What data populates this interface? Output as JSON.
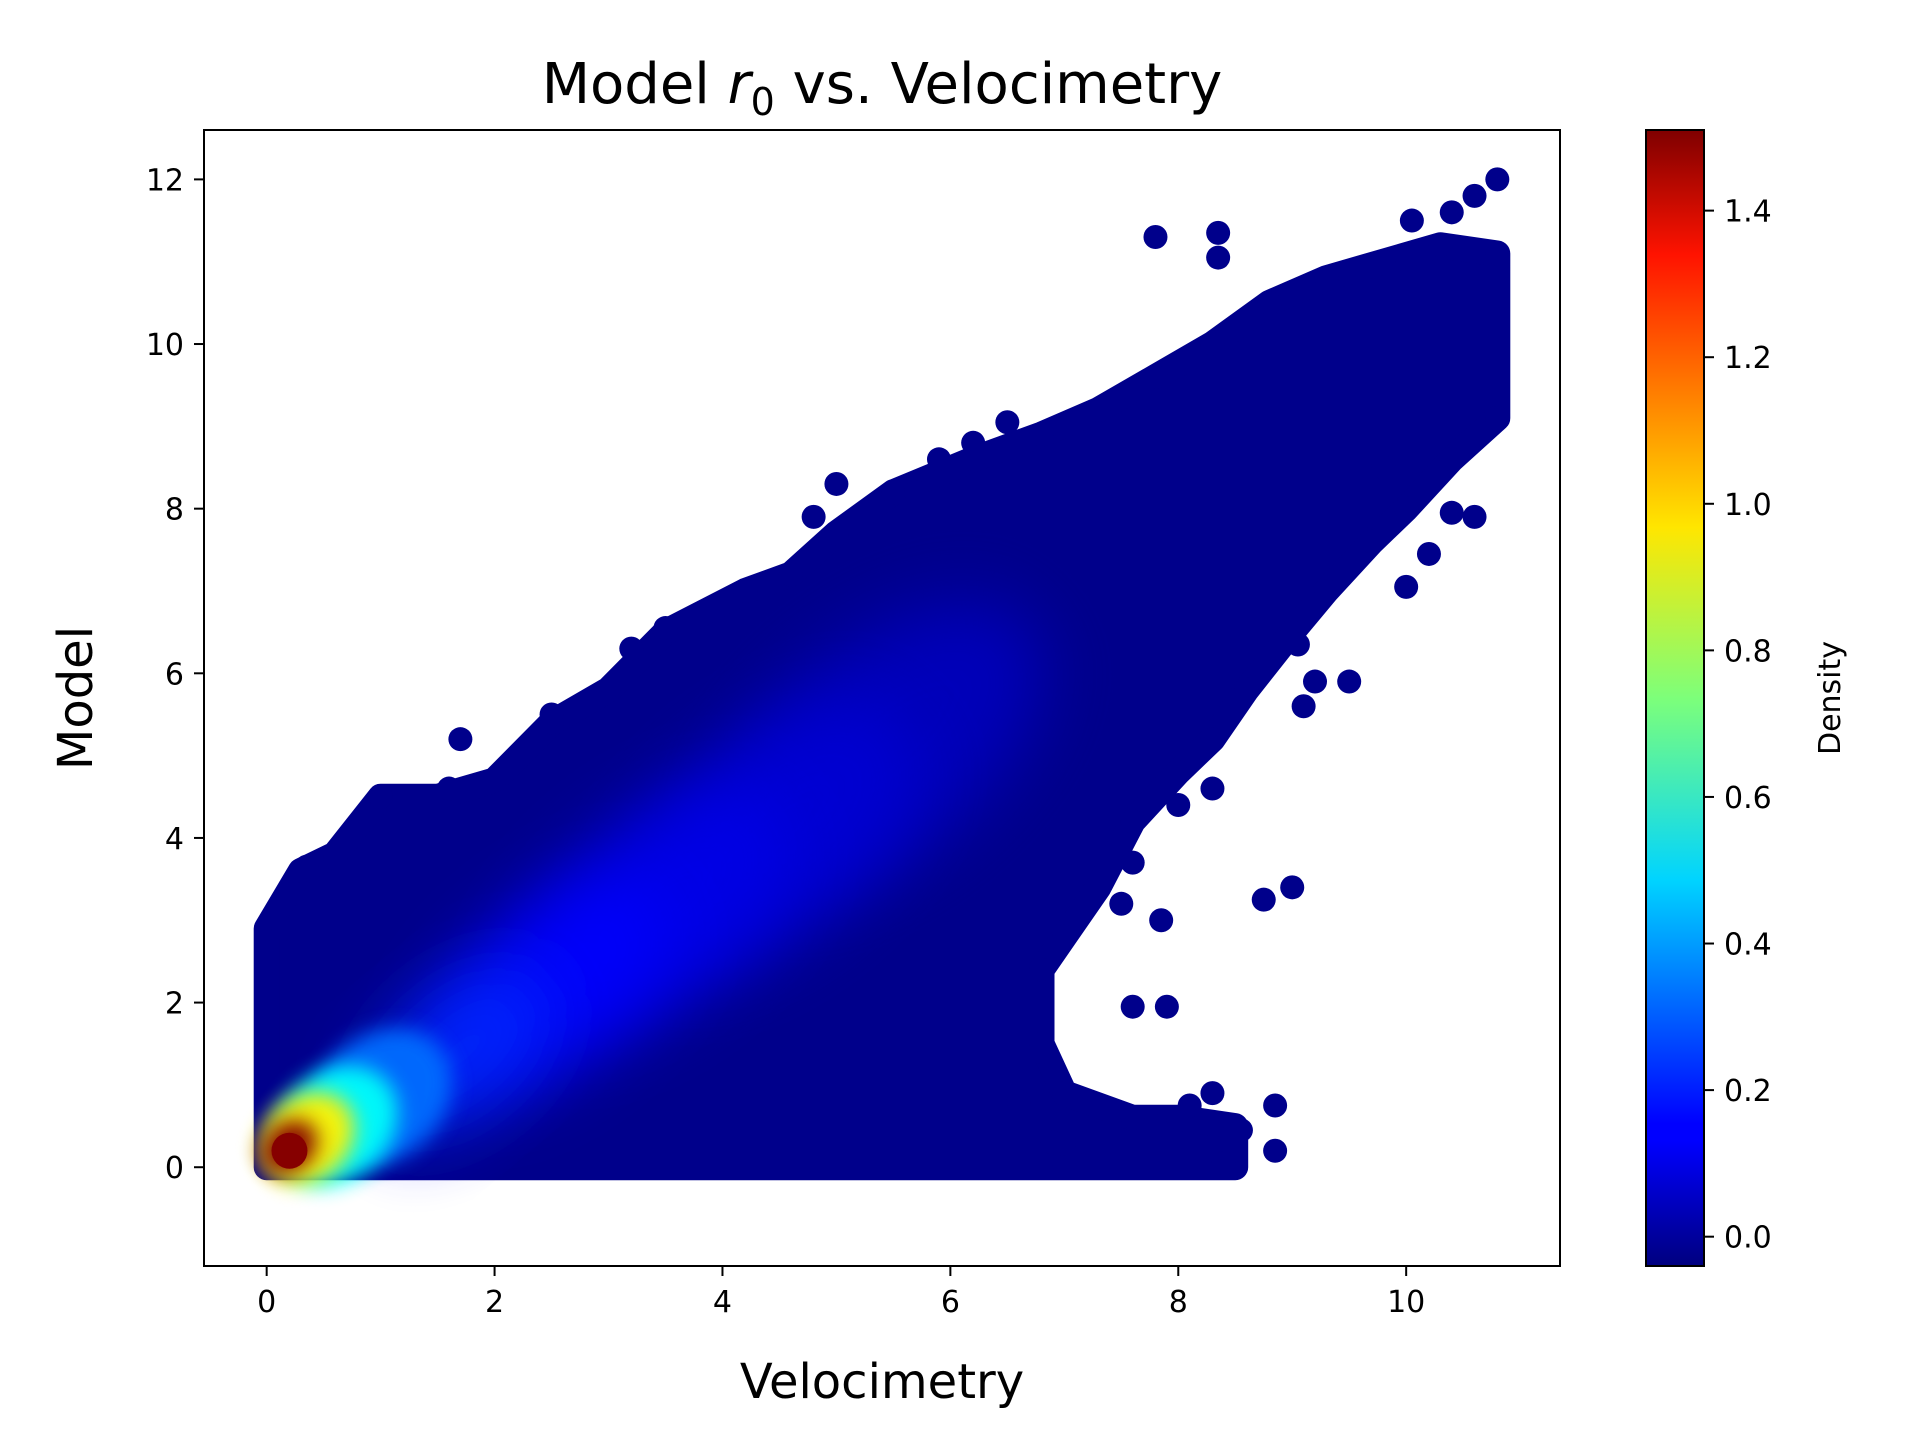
{
  "chart_data": {
    "type": "scatter",
    "title": "Model r0 vs. Velocimetry",
    "title_parts": {
      "prefix": "Model ",
      "var": "r",
      "sub": "0",
      "suffix": " vs. Velocimetry"
    },
    "xlabel": "Velocimetry",
    "ylabel": "Model",
    "xlim": [
      -0.55,
      11.35
    ],
    "ylim": [
      -1.2,
      12.6
    ],
    "xticks": [
      0,
      2,
      4,
      6,
      8,
      10
    ],
    "yticks": [
      0,
      2,
      4,
      6,
      8,
      10,
      12
    ],
    "grid": false,
    "colormap": "jet",
    "colorbar": {
      "label": "Density",
      "range": [
        -0.04,
        1.51
      ],
      "ticks": [
        "0.0",
        "0.2",
        "0.4",
        "0.6",
        "0.8",
        "1.0",
        "1.2",
        "1.4"
      ],
      "tick_values": [
        0.0,
        0.2,
        0.4,
        0.6,
        0.8,
        1.0,
        1.2,
        1.4
      ]
    },
    "point_color_base": "#00008b",
    "density_peak": {
      "x": 0.2,
      "y": 0.2,
      "density": 1.5
    },
    "cloud_outline_upper": [
      [
        0.0,
        0.0
      ],
      [
        0.0,
        2.9
      ],
      [
        0.3,
        3.6
      ],
      [
        0.6,
        3.8
      ],
      [
        1.0,
        4.5
      ],
      [
        1.5,
        4.5
      ],
      [
        2.0,
        4.7
      ],
      [
        2.5,
        5.4
      ],
      [
        3.0,
        5.8
      ],
      [
        3.5,
        6.5
      ],
      [
        4.2,
        7.0
      ],
      [
        4.6,
        7.2
      ],
      [
        5.0,
        7.7
      ],
      [
        5.5,
        8.2
      ],
      [
        6.2,
        8.6
      ],
      [
        6.8,
        8.9
      ],
      [
        7.3,
        9.2
      ],
      [
        7.8,
        9.6
      ],
      [
        8.3,
        10.0
      ],
      [
        8.8,
        10.5
      ],
      [
        9.3,
        10.8
      ],
      [
        9.8,
        11.0
      ],
      [
        10.3,
        11.2
      ],
      [
        10.8,
        11.1
      ],
      [
        10.8,
        9.1
      ]
    ],
    "cloud_outline_lower": [
      [
        10.8,
        9.1
      ],
      [
        10.4,
        8.6
      ],
      [
        10.0,
        8.0
      ],
      [
        9.7,
        7.6
      ],
      [
        9.3,
        7.0
      ],
      [
        9.0,
        6.5
      ],
      [
        8.6,
        5.8
      ],
      [
        8.3,
        5.2
      ],
      [
        8.0,
        4.8
      ],
      [
        7.6,
        4.2
      ],
      [
        7.3,
        3.4
      ],
      [
        7.0,
        2.8
      ],
      [
        6.8,
        2.4
      ],
      [
        6.8,
        1.5
      ],
      [
        7.0,
        0.9
      ],
      [
        7.6,
        0.6
      ],
      [
        8.0,
        0.6
      ],
      [
        8.5,
        0.5
      ],
      [
        8.5,
        0.0
      ],
      [
        7.0,
        0.0
      ],
      [
        0.0,
        0.0
      ]
    ],
    "outlier_points": [
      [
        7.8,
        11.3
      ],
      [
        8.35,
        11.35
      ],
      [
        8.35,
        11.05
      ],
      [
        10.05,
        11.5
      ],
      [
        10.4,
        11.6
      ],
      [
        10.6,
        11.8
      ],
      [
        10.8,
        12.0
      ],
      [
        6.5,
        9.05
      ],
      [
        6.2,
        8.8
      ],
      [
        5.9,
        8.6
      ],
      [
        5.0,
        8.3
      ],
      [
        4.8,
        7.9
      ],
      [
        5.7,
        8.2
      ],
      [
        1.7,
        5.2
      ],
      [
        2.5,
        5.5
      ],
      [
        3.2,
        6.3
      ],
      [
        3.5,
        6.55
      ],
      [
        1.0,
        4.5
      ],
      [
        1.6,
        4.6
      ],
      [
        0.35,
        3.65
      ],
      [
        0.6,
        3.75
      ],
      [
        0.15,
        2.9
      ],
      [
        9.0,
        3.4
      ],
      [
        8.75,
        3.25
      ],
      [
        7.85,
        3.0
      ],
      [
        9.1,
        5.6
      ],
      [
        9.2,
        5.9
      ],
      [
        9.5,
        5.9
      ],
      [
        9.05,
        6.35
      ],
      [
        8.85,
        0.75
      ],
      [
        8.85,
        0.2
      ],
      [
        8.4,
        0.05
      ],
      [
        8.55,
        0.45
      ],
      [
        7.5,
        3.2
      ],
      [
        7.6,
        1.95
      ],
      [
        7.9,
        1.95
      ],
      [
        10.6,
        7.9
      ],
      [
        10.4,
        7.95
      ],
      [
        10.0,
        7.05
      ],
      [
        10.2,
        7.45
      ],
      [
        9.8,
        8.5
      ],
      [
        7.2,
        0.3
      ],
      [
        7.8,
        0.5
      ],
      [
        6.8,
        1.4
      ],
      [
        6.6,
        0.8
      ],
      [
        6.9,
        0.3
      ],
      [
        8.1,
        0.75
      ],
      [
        8.3,
        0.9
      ],
      [
        8.0,
        4.4
      ],
      [
        8.3,
        4.6
      ],
      [
        7.6,
        3.7
      ]
    ],
    "density_blobs": [
      {
        "x": 0.2,
        "y": 0.25,
        "density": 1.5
      },
      {
        "x": 0.35,
        "y": 0.35,
        "density": 0.95
      },
      {
        "x": 0.6,
        "y": 0.5,
        "density": 0.55
      },
      {
        "x": 1.0,
        "y": 0.85,
        "density": 0.32
      },
      {
        "x": 1.7,
        "y": 1.4,
        "density": 0.22
      },
      {
        "x": 2.5,
        "y": 2.2,
        "density": 0.16
      },
      {
        "x": 3.4,
        "y": 3.1,
        "density": 0.12
      },
      {
        "x": 4.4,
        "y": 4.0,
        "density": 0.09
      },
      {
        "x": 5.4,
        "y": 5.1,
        "density": 0.06
      }
    ]
  }
}
